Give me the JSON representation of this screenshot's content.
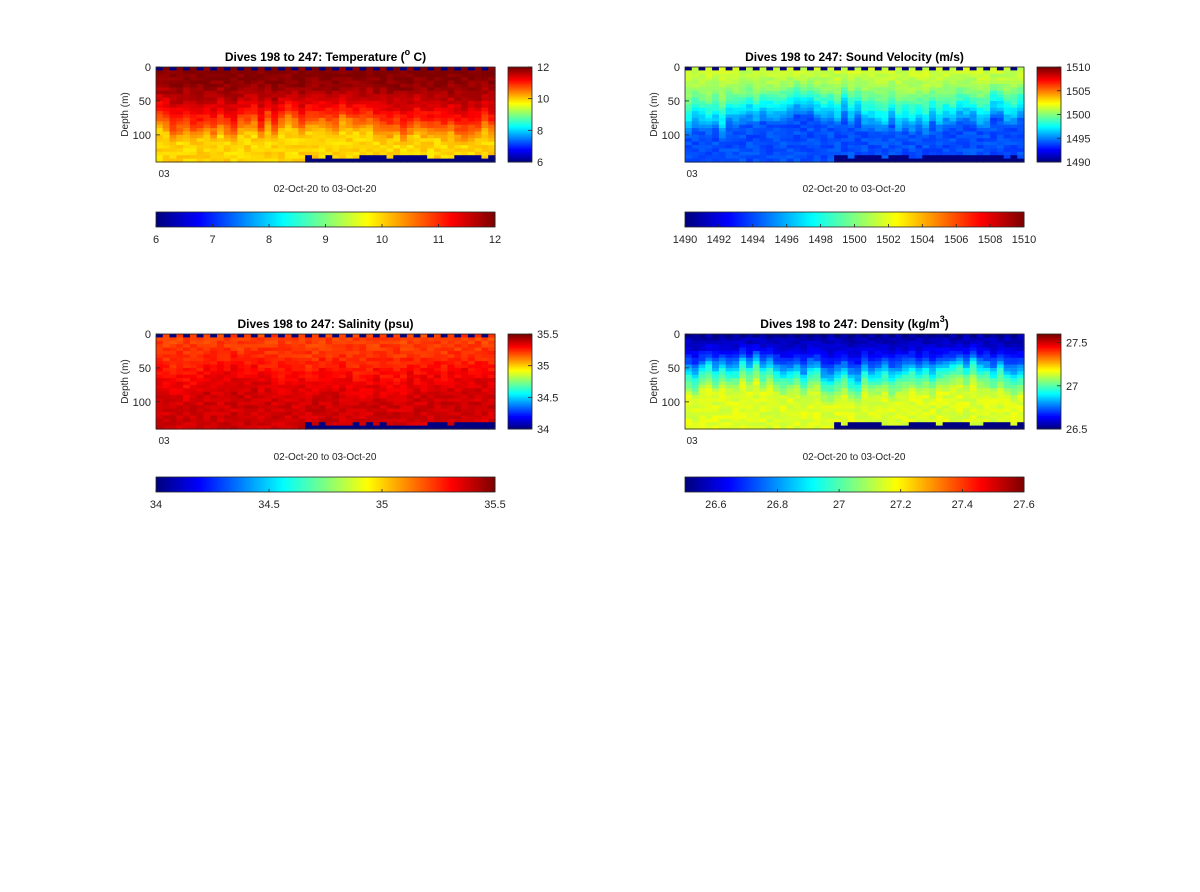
{
  "chart_data": [
    {
      "type": "heatmap",
      "title": "Dives 198 to 247: Temperature (",
      "title_super": "o",
      "title_after": " C)",
      "ylabel": "Depth (m)",
      "xlabel": "02-Oct-20 to 03-Oct-20",
      "xticks": [
        "03"
      ],
      "yticks": [
        "0",
        "50",
        "100"
      ],
      "ylim": [
        0,
        140
      ],
      "yreverse": true,
      "colormap": "jet",
      "clim": [
        6,
        12
      ],
      "side_colorbar_ticks": [
        "6",
        "8",
        "10",
        "12"
      ],
      "bottom_colorbar_ticks": [
        "6",
        "7",
        "8",
        "9",
        "10",
        "11",
        "12"
      ],
      "profile": {
        "surface": 12,
        "mid": 11,
        "deep": 10,
        "thermocline_depth": 75,
        "bottom_value": 6
      },
      "dives": 50
    },
    {
      "type": "heatmap",
      "title": "Dives 198 to 247: Sound Velocity (m/s)",
      "title_super": "",
      "title_after": "",
      "ylabel": "Depth (m)",
      "xlabel": "02-Oct-20 to 03-Oct-20",
      "xticks": [
        "03"
      ],
      "yticks": [
        "0",
        "50",
        "100"
      ],
      "ylim": [
        0,
        140
      ],
      "yreverse": true,
      "colormap": "jet",
      "clim": [
        1490,
        1510
      ],
      "side_colorbar_ticks": [
        "1490",
        "1495",
        "1500",
        "1505",
        "1510"
      ],
      "bottom_colorbar_ticks": [
        "1490",
        "1492",
        "1494",
        "1496",
        "1498",
        "1500",
        "1502",
        "1504",
        "1506",
        "1508",
        "1510"
      ],
      "profile": {
        "surface": 1501.5,
        "mid": 1497.5,
        "deep": 1494,
        "thermocline_depth": 60,
        "bottom_value": 1490
      },
      "dives": 50
    },
    {
      "type": "heatmap",
      "title": "Dives 198 to 247: Salinity (psu)",
      "title_super": "",
      "title_after": "",
      "ylabel": "Depth (m)",
      "xlabel": "02-Oct-20 to 03-Oct-20",
      "xticks": [
        "03"
      ],
      "yticks": [
        "0",
        "50",
        "100"
      ],
      "ylim": [
        0,
        140
      ],
      "yreverse": true,
      "colormap": "jet",
      "clim": [
        34,
        35.5
      ],
      "side_colorbar_ticks": [
        "34",
        "34.5",
        "35",
        "35.5"
      ],
      "bottom_colorbar_ticks": [
        "34",
        "34.5",
        "35",
        "35.5"
      ],
      "profile": {
        "surface": 35.22,
        "mid": 35.32,
        "deep": 35.38,
        "thermocline_depth": 65,
        "bottom_value": 34
      },
      "dives": 50
    },
    {
      "type": "heatmap",
      "title": "Dives 198 to 247: Density (kg/m",
      "title_super": "3",
      "title_after": ")",
      "ylabel": "Depth (m)",
      "xlabel": "02-Oct-20 to 03-Oct-20",
      "xticks": [
        "03"
      ],
      "yticks": [
        "0",
        "50",
        "100"
      ],
      "ylim": [
        0,
        140
      ],
      "yreverse": true,
      "colormap": "jet",
      "clim": [
        26.5,
        27.6
      ],
      "side_colorbar_ticks": [
        "26.5",
        "27",
        "27.5"
      ],
      "bottom_colorbar_ticks": [
        "26.6",
        "26.8",
        "27",
        "27.2",
        "27.4",
        "27.6"
      ],
      "profile": {
        "surface": 26.55,
        "mid": 26.95,
        "deep": 27.15,
        "thermocline_depth": 60,
        "bottom_value": 26.5
      },
      "dives": 50
    }
  ]
}
